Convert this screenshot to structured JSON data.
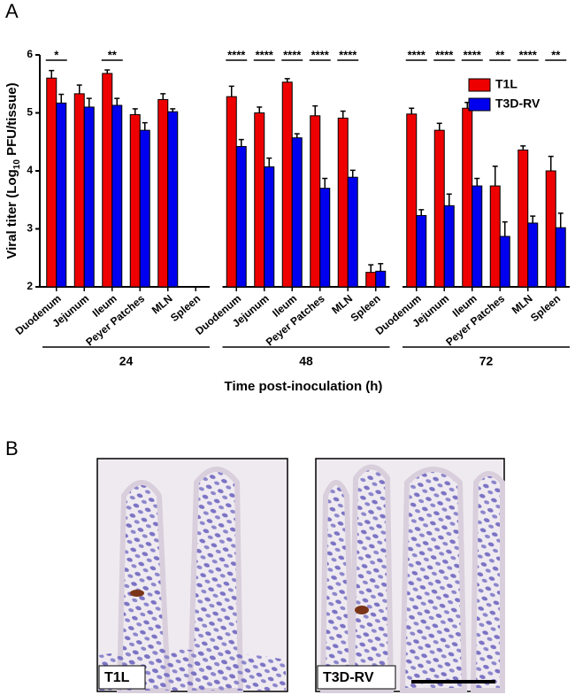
{
  "panel_a_label": "A",
  "chart_data": {
    "type": "bar",
    "ylabel": [
      "Viral titer (Log",
      "10",
      " PFU/tissue)"
    ],
    "xlabel": "Time post-inoculation (h)",
    "groups": [
      "24",
      "48",
      "72"
    ],
    "categories": [
      "Duodenum",
      "Jejunum",
      "Ileum",
      "Peyer Patches",
      "MLN",
      "Spleen",
      "Duodenum",
      "Jejunum",
      "Ileum",
      "Peyer Patches",
      "MLN",
      "Spleen",
      "Duodenum",
      "Jejunum",
      "Ileum",
      "Peyer Patches",
      "MLN",
      "Spleen"
    ],
    "series": [
      {
        "name": "T1L",
        "color": "#ee0000",
        "values": [
          5.6,
          5.33,
          5.68,
          4.97,
          5.23,
          null,
          5.28,
          5.0,
          5.53,
          4.95,
          4.91,
          2.25,
          4.98,
          4.7,
          5.08,
          3.74,
          4.36,
          4.0
        ],
        "errors": [
          0.13,
          0.15,
          0.06,
          0.1,
          0.1,
          null,
          0.18,
          0.1,
          0.06,
          0.17,
          0.12,
          0.13,
          0.1,
          0.12,
          0.1,
          0.34,
          0.07,
          0.25
        ]
      },
      {
        "name": "T3D-RV",
        "color": "#0000ee",
        "values": [
          5.17,
          5.1,
          5.13,
          4.7,
          5.02,
          null,
          4.42,
          4.07,
          4.57,
          3.7,
          3.89,
          2.27,
          3.23,
          3.4,
          3.74,
          2.87,
          3.1,
          3.02
        ],
        "errors": [
          0.15,
          0.15,
          0.12,
          0.13,
          0.05,
          null,
          0.12,
          0.15,
          0.07,
          0.17,
          0.12,
          0.13,
          0.1,
          0.2,
          0.13,
          0.25,
          0.12,
          0.25
        ]
      }
    ],
    "significance": [
      "*",
      null,
      "**",
      null,
      null,
      null,
      "****",
      "****",
      "****",
      "****",
      "****",
      null,
      "****",
      "****",
      "****",
      "**",
      "****",
      "**"
    ],
    "ylim": [
      2,
      6
    ],
    "yticks": [
      2,
      3,
      4,
      5,
      6
    ],
    "legend": "top-right"
  },
  "panel_b": {
    "label": "B",
    "images": [
      {
        "label": "T1L"
      },
      {
        "label": "T3D-RV"
      }
    ]
  }
}
